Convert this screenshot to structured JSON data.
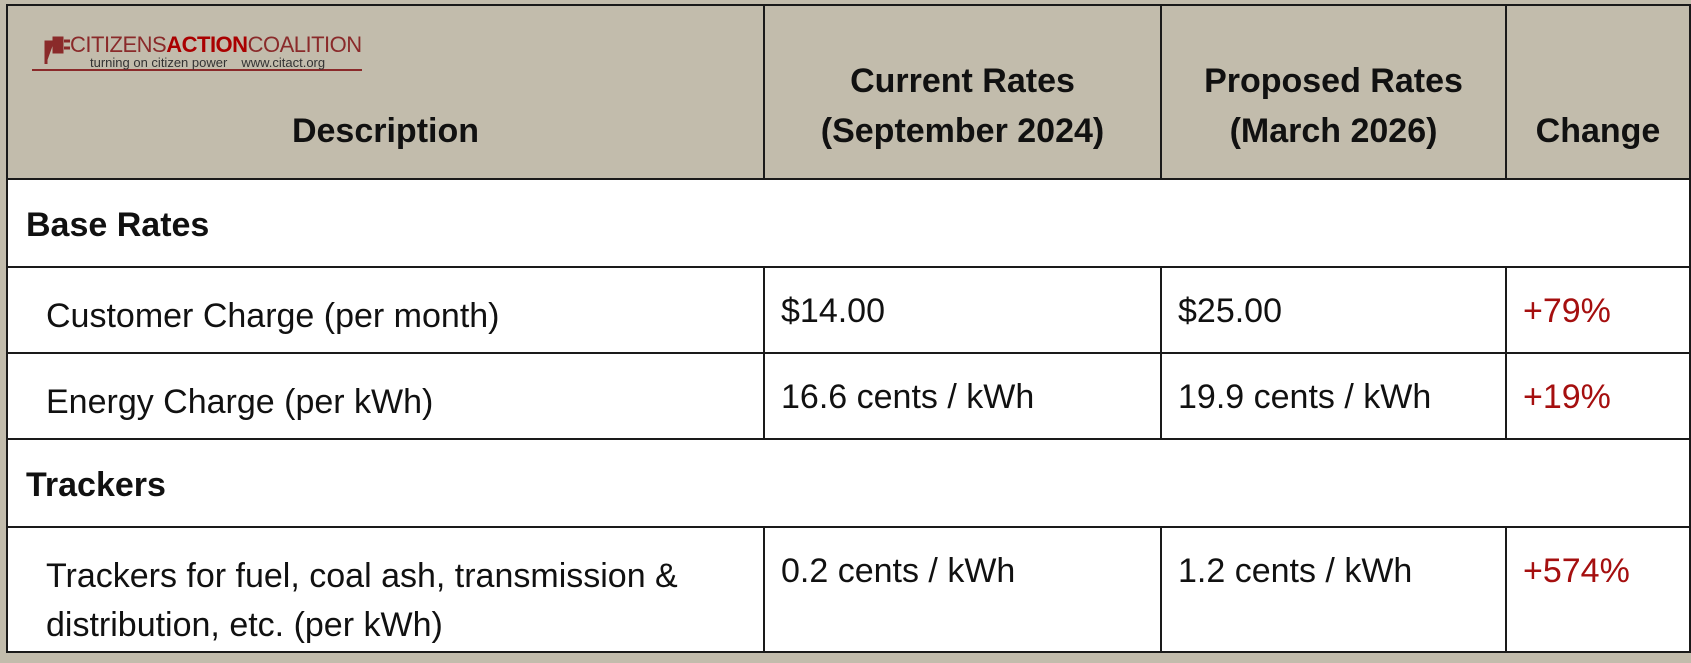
{
  "logo": {
    "parts": [
      "CITIZENS",
      "ACTION",
      "COALITION"
    ],
    "tagline": "turning on citizen power",
    "url": "www.citact.org"
  },
  "table": {
    "columns": [
      "Description",
      "Current Rates\n(September 2024)",
      "Proposed Rates\n(March 2026)",
      "Change"
    ],
    "sections": [
      {
        "title": "Base Rates",
        "rows": [
          [
            "Customer Charge (per month)",
            "$14.00",
            "$25.00",
            "+79%"
          ],
          [
            "Energy Charge (per kWh)",
            "16.6 cents / kWh",
            "19.9 cents / kWh",
            "+19%"
          ]
        ]
      },
      {
        "title": "Trackers",
        "rows": [
          [
            "Trackers for fuel, coal ash, transmission & distribution, etc. (per kWh)",
            "0.2 cents / kWh",
            "1.2 cents / kWh",
            "+574%"
          ]
        ]
      }
    ]
  }
}
